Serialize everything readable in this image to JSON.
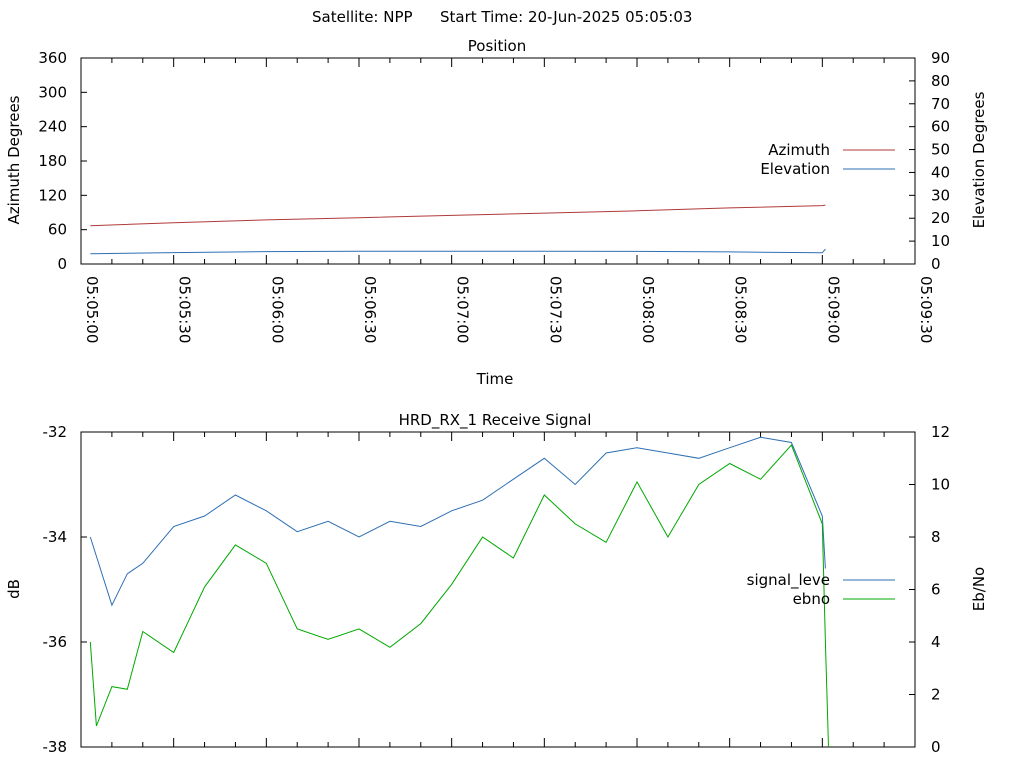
{
  "header": {
    "satellite": "Satellite: NPP",
    "start_time": "Start Time: 20-Jun-2025 05:05:03"
  },
  "colors": {
    "azimuth": "#b03a3a",
    "elevation": "#2e6fb3",
    "signal_level": "#000000",
    "ebno": "#00a800",
    "axis": "#000000",
    "background": "#ffffff"
  },
  "chart_data": [
    {
      "id": "position",
      "type": "line",
      "title": "Position",
      "xlabel": "Time",
      "ylabel": "Azimuth Degrees",
      "y2label": "Elevation Degrees",
      "x_tick_labels": [
        "05:05:00",
        "05:05:30",
        "05:06:00",
        "05:06:30",
        "05:07:00",
        "05:07:30",
        "05:08:00",
        "05:08:30",
        "05:09:00",
        "05:09:30"
      ],
      "x_range_seconds": [
        0,
        270
      ],
      "y_ticks": [
        0,
        60,
        120,
        180,
        240,
        300,
        360
      ],
      "ylim": [
        0,
        360
      ],
      "y2_ticks": [
        0,
        10,
        20,
        30,
        40,
        50,
        60,
        70,
        80,
        90
      ],
      "y2lim": [
        0,
        90
      ],
      "legend": [
        "Azimuth",
        "Elevation"
      ],
      "legend_position": "right",
      "grid": false,
      "series": [
        {
          "name": "Azimuth",
          "axis": "y",
          "color": "#b03a3a",
          "x_times": [
            "05:05:03",
            "05:05:30",
            "05:06:00",
            "05:06:30",
            "05:07:00",
            "05:07:30",
            "05:08:00",
            "05:08:30",
            "05:09:00",
            "05:09:01"
          ],
          "values": [
            67,
            72,
            77,
            81,
            85,
            89,
            93,
            98,
            102,
            103
          ]
        },
        {
          "name": "Elevation",
          "axis": "y2",
          "color": "#2e6fb3",
          "x_times": [
            "05:05:03",
            "05:05:30",
            "05:06:00",
            "05:06:30",
            "05:07:00",
            "05:07:30",
            "05:08:00",
            "05:08:30",
            "05:09:00",
            "05:09:01"
          ],
          "values": [
            4.5,
            5.0,
            5.4,
            5.6,
            5.6,
            5.6,
            5.5,
            5.3,
            4.9,
            6.5
          ]
        }
      ]
    },
    {
      "id": "receive-signal",
      "type": "line",
      "title": "HRD_RX_1 Receive Signal",
      "ylabel": "dB",
      "y2label": "Eb/No",
      "y_ticks": [
        -38,
        -36,
        -34,
        -32
      ],
      "ylim": [
        -38,
        -32
      ],
      "y2_ticks": [
        0,
        2,
        4,
        6,
        8,
        10,
        12
      ],
      "y2lim": [
        0,
        12
      ],
      "legend": [
        "signal_leve",
        "ebno"
      ],
      "legend_position": "right",
      "grid": false,
      "series": [
        {
          "name": "signal_leve",
          "axis": "y",
          "color": "#2e6fb3",
          "x_times": [
            "05:05:03",
            "05:05:10",
            "05:05:15",
            "05:05:20",
            "05:05:30",
            "05:05:40",
            "05:05:50",
            "05:06:00",
            "05:06:10",
            "05:06:20",
            "05:06:30",
            "05:06:40",
            "05:06:50",
            "05:07:00",
            "05:07:10",
            "05:07:20",
            "05:07:30",
            "05:07:40",
            "05:07:50",
            "05:08:00",
            "05:08:10",
            "05:08:20",
            "05:08:30",
            "05:08:40",
            "05:08:50",
            "05:09:00",
            "05:09:01"
          ],
          "values": [
            -34.0,
            -35.3,
            -34.7,
            -34.5,
            -33.8,
            -33.6,
            -33.2,
            -33.5,
            -33.9,
            -33.7,
            -34.0,
            -33.7,
            -33.8,
            -33.5,
            -33.3,
            -32.9,
            -32.5,
            -33.0,
            -32.4,
            -32.3,
            -32.4,
            -32.5,
            -32.3,
            -32.1,
            -32.2,
            -33.6,
            -34.6
          ]
        },
        {
          "name": "ebno",
          "axis": "y2",
          "color": "#00a800",
          "x_times": [
            "05:05:03",
            "05:05:05",
            "05:05:10",
            "05:05:15",
            "05:05:20",
            "05:05:30",
            "05:05:40",
            "05:05:50",
            "05:06:00",
            "05:06:10",
            "05:06:20",
            "05:06:30",
            "05:06:40",
            "05:06:50",
            "05:07:00",
            "05:07:10",
            "05:07:20",
            "05:07:30",
            "05:07:40",
            "05:07:50",
            "05:08:00",
            "05:08:10",
            "05:08:20",
            "05:08:30",
            "05:08:40",
            "05:08:50",
            "05:09:00",
            "05:09:01",
            "05:09:02"
          ],
          "values": [
            4.0,
            0.8,
            2.3,
            2.2,
            4.4,
            3.6,
            6.1,
            7.7,
            7.0,
            4.5,
            4.1,
            4.5,
            3.8,
            4.7,
            6.2,
            8.0,
            7.2,
            9.6,
            8.5,
            7.8,
            10.1,
            8.0,
            10.0,
            10.8,
            10.2,
            11.5,
            8.5,
            4.0,
            0.0
          ]
        }
      ]
    }
  ]
}
